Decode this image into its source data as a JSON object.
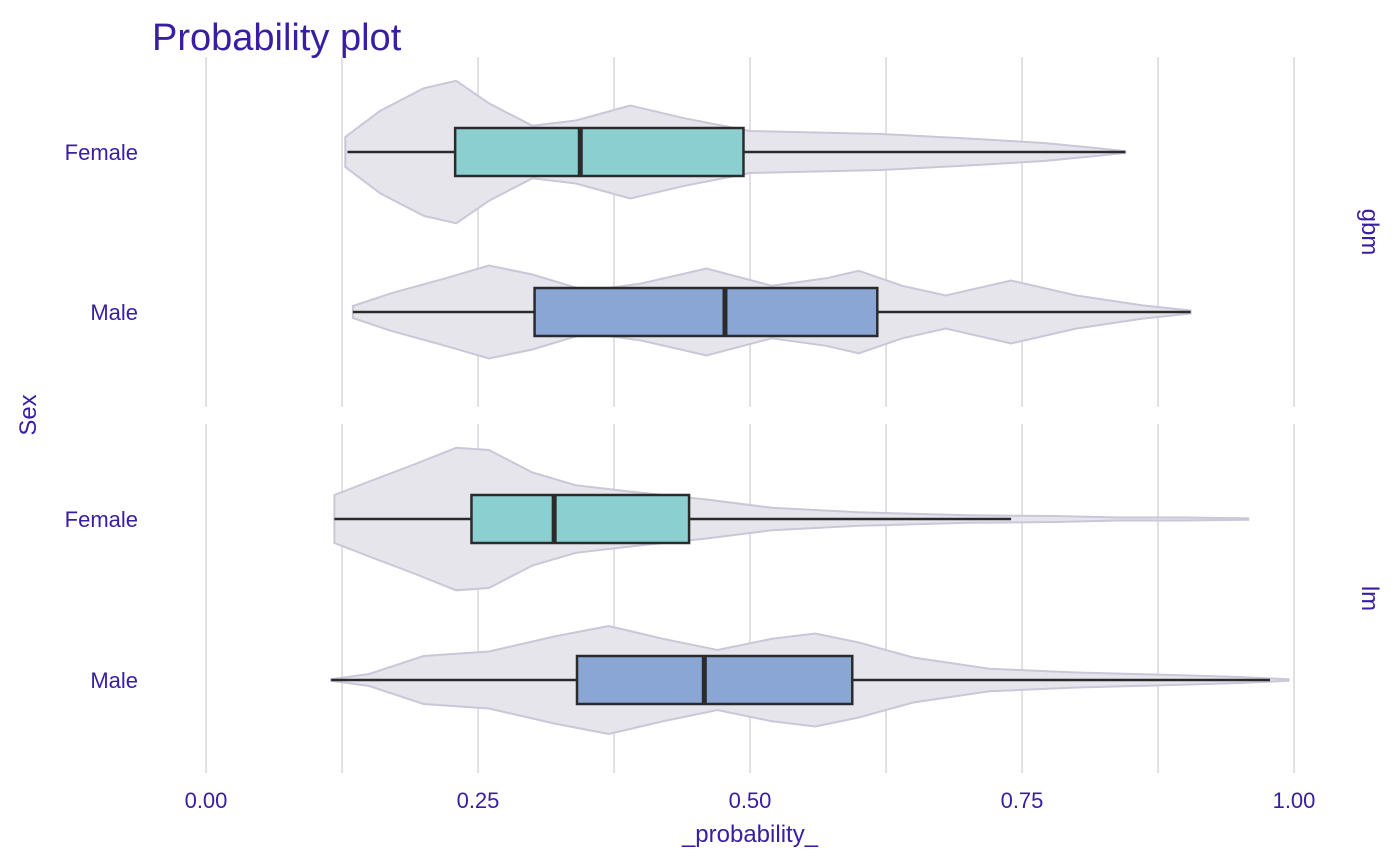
{
  "chart_data": {
    "type": "box",
    "title": "Probability plot",
    "xlabel": "_probability_",
    "ylabel": "Sex",
    "xlim": [
      0,
      1
    ],
    "x_ticks": [
      "0.00",
      "0.25",
      "0.50",
      "0.75",
      "1.00"
    ],
    "x_tick_values": [
      0,
      0.25,
      0.5,
      0.75,
      1
    ],
    "categories": [
      "Female",
      "Male"
    ],
    "colors": {
      "Female": "#8ccfd1",
      "Male": "#8aa6d4"
    },
    "grid": true,
    "panels": [
      {
        "name": "gbm",
        "groups": [
          {
            "category": "Female",
            "min": 0.13,
            "q1": 0.229,
            "median": 0.344,
            "q3": 0.494,
            "max": 0.845,
            "density": [
              [
                0.128,
                0.2
              ],
              [
                0.16,
                0.55
              ],
              [
                0.2,
                0.85
              ],
              [
                0.23,
                0.95
              ],
              [
                0.26,
                0.65
              ],
              [
                0.3,
                0.35
              ],
              [
                0.34,
                0.42
              ],
              [
                0.39,
                0.62
              ],
              [
                0.44,
                0.45
              ],
              [
                0.5,
                0.28
              ],
              [
                0.56,
                0.26
              ],
              [
                0.62,
                0.24
              ],
              [
                0.7,
                0.18
              ],
              [
                0.77,
                0.12
              ],
              [
                0.82,
                0.05
              ],
              [
                0.845,
                0.01
              ]
            ]
          },
          {
            "category": "Male",
            "min": 0.135,
            "q1": 0.302,
            "median": 0.477,
            "q3": 0.617,
            "max": 0.905,
            "density": [
              [
                0.135,
                0.08
              ],
              [
                0.17,
                0.25
              ],
              [
                0.22,
                0.45
              ],
              [
                0.26,
                0.62
              ],
              [
                0.3,
                0.5
              ],
              [
                0.35,
                0.28
              ],
              [
                0.4,
                0.38
              ],
              [
                0.46,
                0.58
              ],
              [
                0.52,
                0.35
              ],
              [
                0.57,
                0.45
              ],
              [
                0.6,
                0.55
              ],
              [
                0.64,
                0.35
              ],
              [
                0.68,
                0.22
              ],
              [
                0.74,
                0.42
              ],
              [
                0.8,
                0.22
              ],
              [
                0.86,
                0.09
              ],
              [
                0.905,
                0.02
              ]
            ]
          }
        ]
      },
      {
        "name": "lm",
        "groups": [
          {
            "category": "Female",
            "min": 0.118,
            "q1": 0.244,
            "median": 0.32,
            "q3": 0.444,
            "max": 0.74,
            "density": [
              [
                0.118,
                0.32
              ],
              [
                0.15,
                0.5
              ],
              [
                0.19,
                0.72
              ],
              [
                0.23,
                0.95
              ],
              [
                0.26,
                0.92
              ],
              [
                0.3,
                0.62
              ],
              [
                0.34,
                0.45
              ],
              [
                0.4,
                0.35
              ],
              [
                0.46,
                0.26
              ],
              [
                0.52,
                0.15
              ],
              [
                0.6,
                0.09
              ],
              [
                0.7,
                0.05
              ],
              [
                0.78,
                0.04
              ],
              [
                0.84,
                0.02
              ],
              [
                0.9,
                0.02
              ],
              [
                0.958,
                0.01
              ]
            ]
          },
          {
            "category": "Male",
            "min": 0.115,
            "q1": 0.341,
            "median": 0.458,
            "q3": 0.594,
            "max": 0.978,
            "density": [
              [
                0.115,
                0.01
              ],
              [
                0.15,
                0.08
              ],
              [
                0.2,
                0.32
              ],
              [
                0.26,
                0.38
              ],
              [
                0.32,
                0.58
              ],
              [
                0.37,
                0.72
              ],
              [
                0.42,
                0.55
              ],
              [
                0.47,
                0.4
              ],
              [
                0.52,
                0.55
              ],
              [
                0.56,
                0.62
              ],
              [
                0.6,
                0.5
              ],
              [
                0.65,
                0.3
              ],
              [
                0.72,
                0.15
              ],
              [
                0.8,
                0.1
              ],
              [
                0.88,
                0.07
              ],
              [
                0.95,
                0.04
              ],
              [
                0.995,
                0.01
              ]
            ]
          }
        ]
      }
    ]
  }
}
